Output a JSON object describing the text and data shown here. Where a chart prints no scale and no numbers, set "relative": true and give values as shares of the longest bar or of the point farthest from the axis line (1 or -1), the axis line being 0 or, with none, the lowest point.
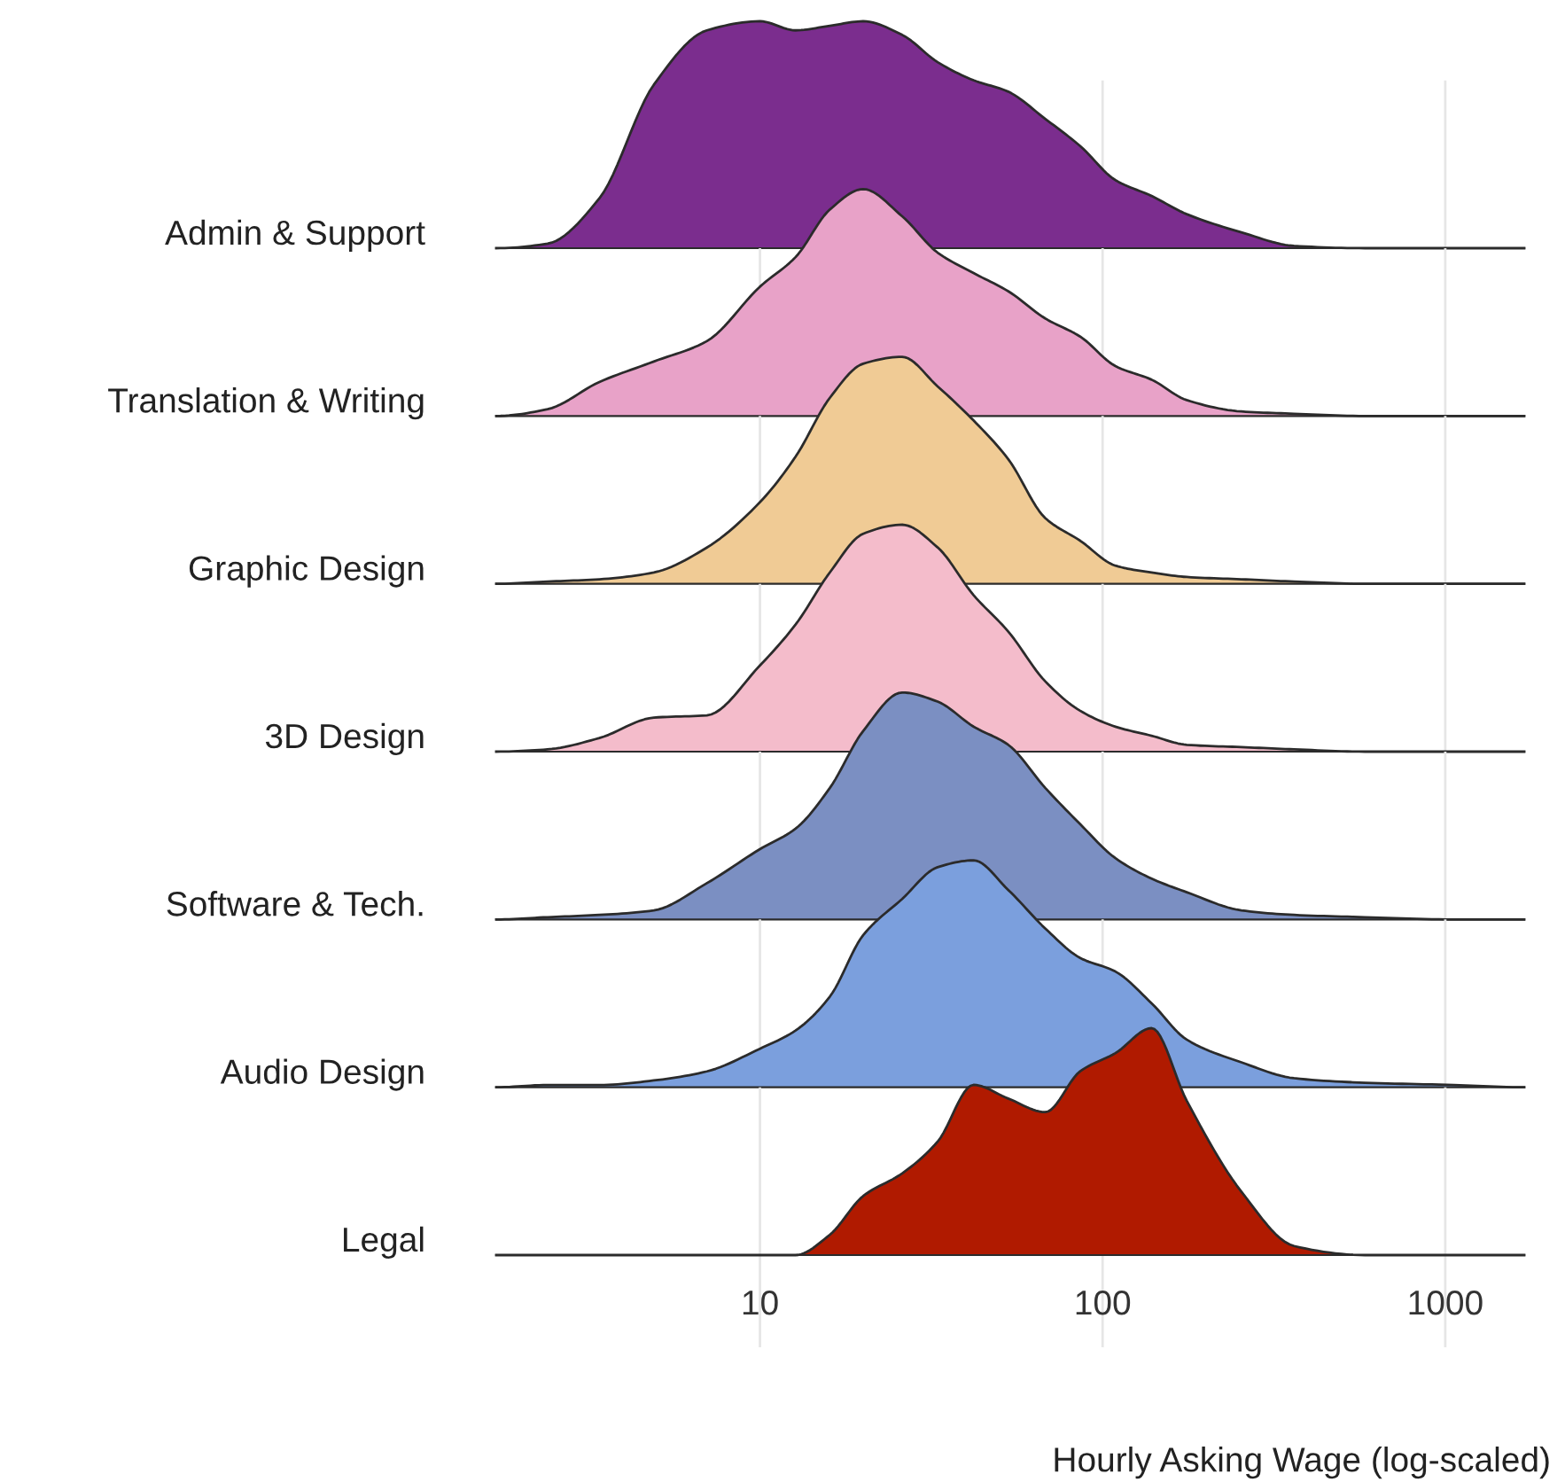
{
  "chart_data": [
    {
      "type": "area",
      "ylabel": "Admin & Support",
      "relative": true,
      "log": "x",
      "grid": "x",
      "tick_labels": false,
      "xlim": [
        1.7,
        1700
      ],
      "xticks": [
        10,
        100,
        1000
      ],
      "x": [
        1.7,
        2.4,
        3.4,
        4.9,
        7,
        10,
        12.7,
        16,
        20,
        26,
        33,
        42,
        53,
        68,
        86,
        109,
        139,
        176,
        254,
        362,
        583,
        1060,
        1700
      ],
      "series": [
        {
          "color": "#7b2d8e",
          "values": [
            0,
            0.02,
            0.22,
            0.72,
            0.96,
            1,
            0.96,
            0.98,
            1,
            0.94,
            0.82,
            0.74,
            0.69,
            0.57,
            0.45,
            0.3,
            0.23,
            0.15,
            0.07,
            0.01,
            0,
            0,
            0
          ]
        }
      ]
    },
    {
      "type": "area",
      "ylabel": "Translation & Writing",
      "relative": true,
      "log": "x",
      "grid": "x",
      "tick_labels": false,
      "xlim": [
        1.7,
        1700
      ],
      "xticks": [
        10,
        100,
        1000
      ],
      "x": [
        1.7,
        2.4,
        3.4,
        4.9,
        7,
        10,
        12.7,
        16,
        20,
        26,
        33,
        42,
        53,
        68,
        86,
        109,
        139,
        176,
        254,
        362,
        583,
        1060,
        1700
      ],
      "series": [
        {
          "color": "#e8a2c8",
          "values": [
            0,
            0.03,
            0.15,
            0.24,
            0.33,
            0.57,
            0.7,
            0.91,
            1,
            0.88,
            0.72,
            0.63,
            0.55,
            0.43,
            0.35,
            0.22,
            0.16,
            0.07,
            0.02,
            0.01,
            0,
            0,
            0
          ]
        }
      ]
    },
    {
      "type": "area",
      "ylabel": "Graphic Design",
      "relative": true,
      "log": "x",
      "grid": "x",
      "tick_labels": false,
      "xlim": [
        1.7,
        1700
      ],
      "xticks": [
        10,
        100,
        1000
      ],
      "x": [
        1.7,
        2.4,
        3.4,
        4.9,
        7,
        10,
        12.7,
        16,
        20,
        26,
        33,
        42,
        53,
        68,
        86,
        109,
        139,
        176,
        254,
        362,
        583,
        1060,
        1700
      ],
      "series": [
        {
          "color": "#f0cb95",
          "values": [
            0,
            0.01,
            0.02,
            0.05,
            0.16,
            0.36,
            0.56,
            0.82,
            0.97,
            1,
            0.87,
            0.72,
            0.55,
            0.29,
            0.19,
            0.08,
            0.05,
            0.03,
            0.02,
            0.01,
            0,
            0,
            0
          ]
        }
      ]
    },
    {
      "type": "area",
      "ylabel": "3D Design",
      "relative": true,
      "log": "x",
      "grid": "x",
      "tick_labels": false,
      "xlim": [
        1.7,
        1700
      ],
      "xticks": [
        10,
        100,
        1000
      ],
      "x": [
        1.7,
        2.4,
        3.4,
        4.9,
        7,
        10,
        12.7,
        16,
        20,
        26,
        33,
        42,
        53,
        68,
        86,
        109,
        139,
        176,
        254,
        362,
        583,
        1060,
        1700
      ],
      "series": [
        {
          "color": "#f4bccb",
          "values": [
            0,
            0.01,
            0.06,
            0.15,
            0.16,
            0.38,
            0.56,
            0.79,
            0.96,
            1,
            0.9,
            0.69,
            0.53,
            0.31,
            0.18,
            0.11,
            0.07,
            0.03,
            0.02,
            0.01,
            0,
            0,
            0
          ]
        }
      ]
    },
    {
      "type": "area",
      "ylabel": "Software & Tech.",
      "relative": true,
      "log": "x",
      "grid": "x",
      "tick_labels": false,
      "xlim": [
        1.7,
        1700
      ],
      "xticks": [
        10,
        100,
        1000
      ],
      "x": [
        1.7,
        2.4,
        3.4,
        4.9,
        7,
        10,
        12.7,
        16,
        20,
        26,
        33,
        42,
        53,
        68,
        86,
        109,
        139,
        176,
        254,
        362,
        583,
        1060,
        1700
      ],
      "series": [
        {
          "color": "#7b8fc2",
          "values": [
            0,
            0.01,
            0.02,
            0.04,
            0.16,
            0.31,
            0.4,
            0.58,
            0.83,
            1,
            0.96,
            0.85,
            0.77,
            0.58,
            0.42,
            0.27,
            0.18,
            0.12,
            0.04,
            0.02,
            0.01,
            0,
            0
          ]
        }
      ]
    },
    {
      "type": "area",
      "ylabel": "Audio Design",
      "relative": true,
      "log": "x",
      "grid": "x",
      "tick_labels": false,
      "xlim": [
        1.7,
        1700
      ],
      "xticks": [
        10,
        100,
        1000
      ],
      "x": [
        1.7,
        2.4,
        3.4,
        4.9,
        7,
        10,
        12.7,
        16,
        20,
        26,
        33,
        42,
        53,
        68,
        86,
        109,
        139,
        176,
        254,
        362,
        583,
        1060,
        1700
      ],
      "series": [
        {
          "color": "#7b9fdd",
          "values": [
            0,
            0.01,
            0.01,
            0.03,
            0.07,
            0.17,
            0.25,
            0.4,
            0.67,
            0.83,
            0.97,
            1,
            0.87,
            0.7,
            0.57,
            0.51,
            0.37,
            0.21,
            0.11,
            0.04,
            0.02,
            0.01,
            0
          ]
        }
      ]
    },
    {
      "type": "area",
      "ylabel": "Legal",
      "xlabel": "Hourly Asking Wage (log-scaled)",
      "relative": true,
      "log": "x",
      "grid": "x",
      "tick_labels": "x",
      "xlim": [
        1.7,
        1700
      ],
      "xticks": [
        10,
        100,
        1000
      ],
      "x": [
        1.7,
        2.4,
        3.4,
        4.9,
        7,
        10,
        12.7,
        16,
        20,
        26,
        33,
        42,
        53,
        68,
        86,
        109,
        139,
        176,
        254,
        362,
        583,
        1060,
        1700
      ],
      "series": [
        {
          "color": "#b01a00",
          "values": [
            0,
            0,
            0,
            0,
            0,
            0,
            0,
            0.09,
            0.26,
            0.36,
            0.5,
            0.75,
            0.69,
            0.63,
            0.81,
            0.89,
            1,
            0.68,
            0.28,
            0.04,
            0,
            0,
            0
          ]
        }
      ]
    }
  ]
}
